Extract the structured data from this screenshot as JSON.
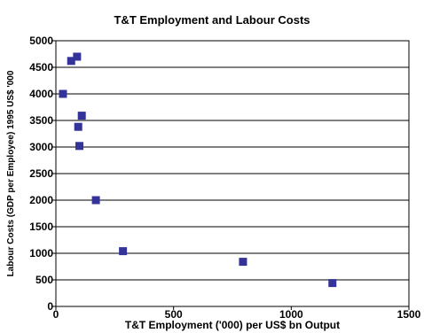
{
  "chart_data": {
    "type": "scatter",
    "title": "T&T Employment and Labour Costs",
    "xlabel": "T&T Employment ('000) per US$ bn Output",
    "ylabel": "Labour Costs (GDP per Employee) 1995 US$ '000",
    "xlim": [
      0,
      1500
    ],
    "ylim": [
      0,
      5000
    ],
    "x_ticks": [
      0,
      500,
      1000,
      1500
    ],
    "y_ticks": [
      0,
      500,
      1000,
      1500,
      2000,
      2500,
      3000,
      3500,
      4000,
      4500,
      5000
    ],
    "grid": "horizontal",
    "legend": "none",
    "marker": "square",
    "marker_color": "#333399",
    "points": [
      {
        "x": 30,
        "y": 4000
      },
      {
        "x": 65,
        "y": 4620
      },
      {
        "x": 90,
        "y": 4700
      },
      {
        "x": 95,
        "y": 3380
      },
      {
        "x": 100,
        "y": 3020
      },
      {
        "x": 110,
        "y": 3590
      },
      {
        "x": 170,
        "y": 2000
      },
      {
        "x": 285,
        "y": 1040
      },
      {
        "x": 795,
        "y": 840
      },
      {
        "x": 1175,
        "y": 440
      }
    ]
  }
}
